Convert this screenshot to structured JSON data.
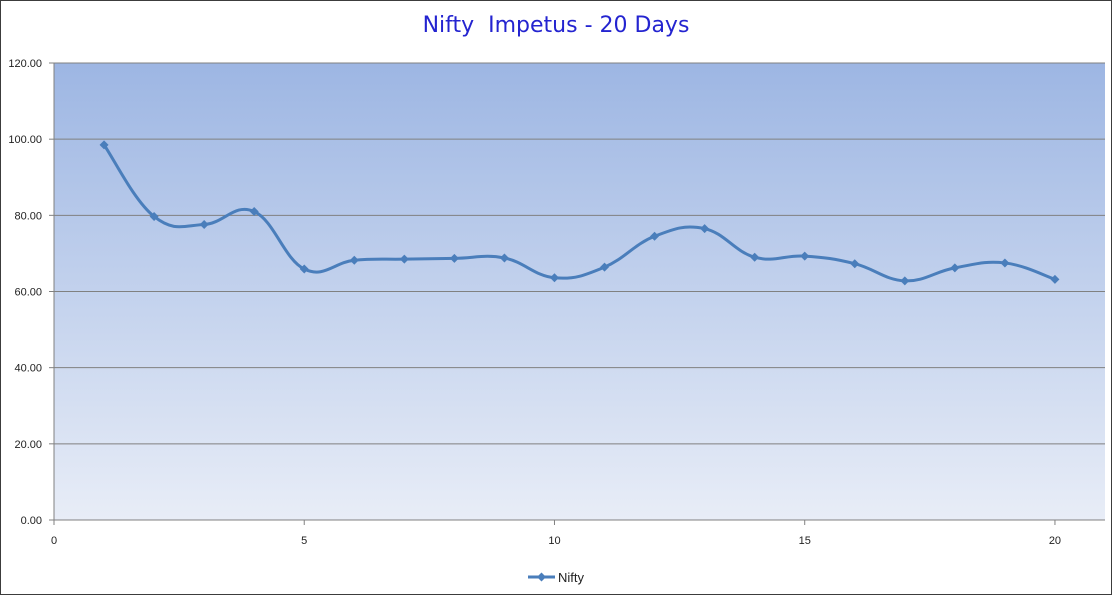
{
  "chart_data": {
    "type": "line",
    "title": "Nifty  Impetus - 20 Days",
    "xlabel": "",
    "ylabel": "",
    "xlim": [
      0,
      21
    ],
    "ylim": [
      0,
      120
    ],
    "x_ticks": [
      "0",
      "5",
      "10",
      "15",
      "20"
    ],
    "x_tick_values": [
      0,
      5,
      10,
      15,
      20
    ],
    "y_ticks": [
      "0.00",
      "20.00",
      "40.00",
      "60.00",
      "80.00",
      "100.00",
      "120.00"
    ],
    "y_tick_values": [
      0,
      20,
      40,
      60,
      80,
      100,
      120
    ],
    "grid": "horizontal",
    "legend_position": "bottom",
    "smooth": true,
    "series": [
      {
        "name": "Nifty",
        "color": "#4a7ebb",
        "x": [
          1,
          2,
          3,
          4,
          5,
          6,
          7,
          8,
          9,
          10,
          11,
          12,
          13,
          14,
          15,
          16,
          17,
          18,
          19,
          20
        ],
        "values": [
          98.5,
          79.7,
          77.6,
          81.0,
          65.9,
          68.2,
          68.5,
          68.7,
          68.8,
          63.6,
          66.4,
          74.5,
          76.5,
          69.0,
          69.3,
          67.3,
          62.8,
          66.2,
          67.5,
          63.2
        ]
      }
    ],
    "colors": {
      "title": "#2424d0",
      "plot_top": "#9db6e3",
      "plot_bottom": "#e8edf7",
      "gridline": "#808080",
      "axis": "#808080"
    }
  }
}
